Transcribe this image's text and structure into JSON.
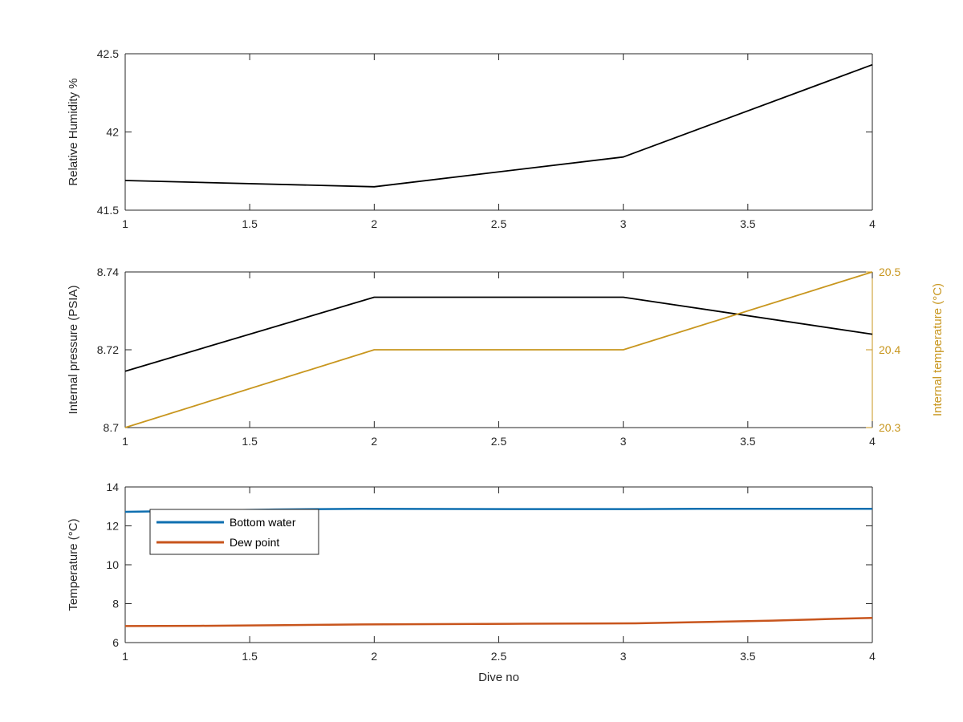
{
  "chart_data": [
    {
      "type": "line",
      "x": [
        1,
        2,
        3,
        4
      ],
      "series": [
        {
          "values": [
            41.69,
            41.65,
            41.84,
            42.43
          ],
          "color": "#000000"
        }
      ],
      "xlabel": "",
      "ylabel": "Relative Humidity %",
      "xlim": [
        1,
        4
      ],
      "ylim": [
        41.5,
        42.5
      ],
      "xticks": [
        1,
        1.5,
        2,
        2.5,
        3,
        3.5,
        4
      ],
      "xtick_labels": [
        "1",
        "1.5",
        "2",
        "2.5",
        "3",
        "3.5",
        "4"
      ],
      "yticks": [
        41.5,
        42,
        42.5
      ],
      "ytick_labels": [
        "41.5",
        "42",
        "42.5"
      ],
      "grid": false,
      "legend": null
    },
    {
      "type": "line",
      "x": [
        1,
        2,
        3,
        4
      ],
      "series": [
        {
          "values": [
            8.7145,
            8.7335,
            8.7335,
            8.724
          ],
          "color": "#000000",
          "axis": "left"
        },
        {
          "values": [
            20.3,
            20.4,
            20.4,
            20.5
          ],
          "color": "#c8961e",
          "axis": "right"
        }
      ],
      "xlabel": "",
      "ylabel": "Internal pressure (PSIA)",
      "ylabel_right": "Internal temperature (°C)",
      "xlim": [
        1,
        4
      ],
      "ylim": [
        8.7,
        8.74
      ],
      "ylim_right": [
        20.3,
        20.5
      ],
      "xticks": [
        1,
        1.5,
        2,
        2.5,
        3,
        3.5,
        4
      ],
      "xtick_labels": [
        "1",
        "1.5",
        "2",
        "2.5",
        "3",
        "3.5",
        "4"
      ],
      "yticks": [
        8.7,
        8.72,
        8.74
      ],
      "ytick_labels": [
        "8.7",
        "8.72",
        "8.74"
      ],
      "yticks_right": [
        20.3,
        20.4,
        20.5
      ],
      "ytick_labels_right": [
        "20.3",
        "20.4",
        "20.5"
      ],
      "grid": false,
      "legend": null
    },
    {
      "type": "line",
      "x": [
        1,
        1.3,
        1.6,
        1.95,
        2.6,
        3.05,
        3.3,
        3.6,
        3.85,
        4
      ],
      "series": [
        {
          "name": "Bottom water",
          "values": [
            12.72,
            12.78,
            12.84,
            12.88,
            12.86,
            12.86,
            12.88,
            12.88,
            12.88,
            12.88
          ],
          "color": "#0f6fb0"
        },
        {
          "name": "Dew point",
          "values": [
            6.85,
            6.86,
            6.89,
            6.93,
            6.97,
            6.99,
            7.05,
            7.13,
            7.22,
            7.27
          ],
          "color": "#c8551d"
        }
      ],
      "xlabel": "Dive no",
      "ylabel": "Temperature (°C)",
      "xlim": [
        1,
        4
      ],
      "ylim": [
        6,
        14
      ],
      "xticks": [
        1,
        1.5,
        2,
        2.5,
        3,
        3.5,
        4
      ],
      "xtick_labels": [
        "1",
        "1.5",
        "2",
        "2.5",
        "3",
        "3.5",
        "4"
      ],
      "yticks": [
        6,
        8,
        10,
        12,
        14
      ],
      "ytick_labels": [
        "6",
        "8",
        "10",
        "12",
        "14"
      ],
      "grid": false,
      "legend": {
        "position": "top-left",
        "entries": [
          "Bottom water",
          "Dew point"
        ]
      }
    }
  ]
}
